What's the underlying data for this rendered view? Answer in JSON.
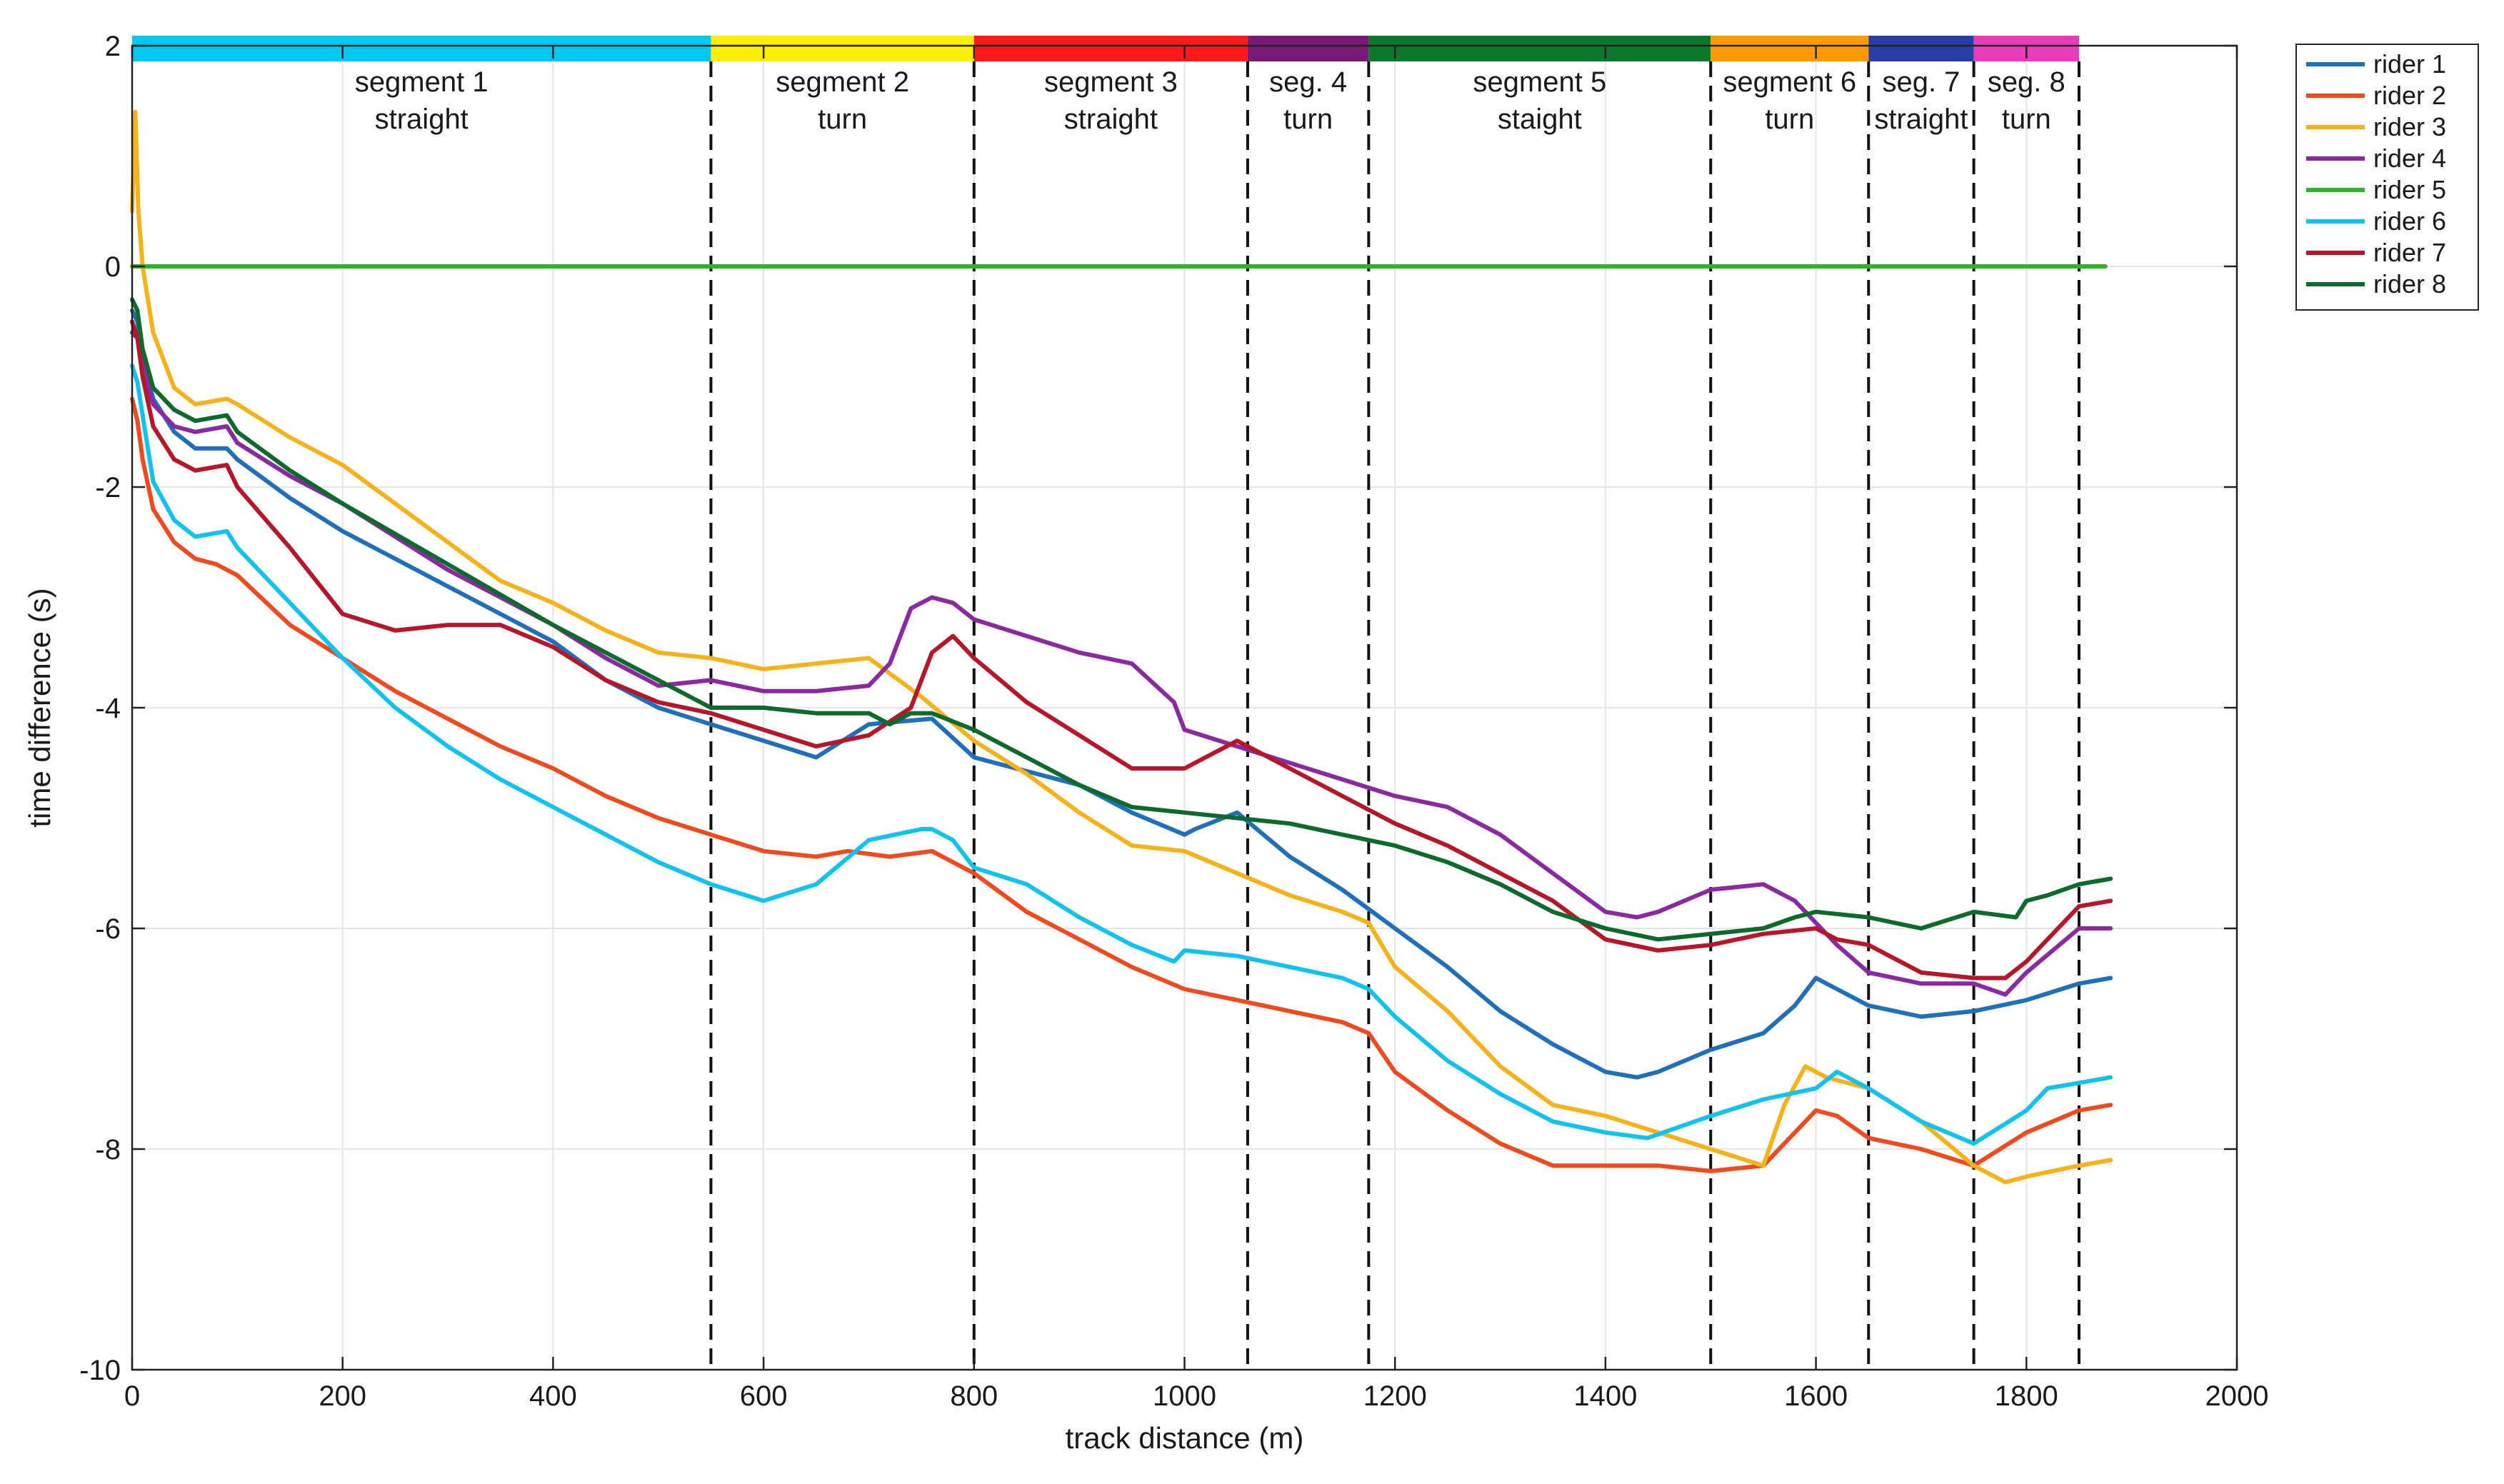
{
  "chart_data": {
    "type": "line",
    "xlabel": "track distance (m)",
    "ylabel": "time difference (s)",
    "xlim": [
      0,
      2000
    ],
    "ylim": [
      -10,
      2
    ],
    "x_ticks": [
      0,
      200,
      400,
      600,
      800,
      1000,
      1200,
      1400,
      1600,
      1800,
      2000
    ],
    "y_ticks": [
      2,
      0,
      -2,
      -4,
      -6,
      -8,
      -10
    ],
    "x_tick_labels": [
      "0",
      "200",
      "400",
      "600",
      "800",
      "1000",
      "1200",
      "1400",
      "1600",
      "1800",
      "2000"
    ],
    "y_tick_labels": [
      "2",
      "0",
      "-2",
      "-4",
      "-6",
      "-8",
      "-10"
    ],
    "grid": true,
    "legend_position": "outside-top-right",
    "segments": [
      {
        "label_line1": "segment 1",
        "label_line2": "straight",
        "start": 0,
        "end": 550,
        "color": "#00c8f0"
      },
      {
        "label_line1": "segment 2",
        "label_line2": "turn",
        "start": 550,
        "end": 800,
        "color": "#ffee00"
      },
      {
        "label_line1": "segment 3",
        "label_line2": "straight",
        "start": 800,
        "end": 1060,
        "color": "#ff1a1a"
      },
      {
        "label_line1": "seg. 4",
        "label_line2": "turn",
        "start": 1060,
        "end": 1175,
        "color": "#7a1a78"
      },
      {
        "label_line1": "segment  5",
        "label_line2": "staight",
        "start": 1175,
        "end": 1500,
        "color": "#0a7a2a"
      },
      {
        "label_line1": "segment 6",
        "label_line2": "turn",
        "start": 1500,
        "end": 1650,
        "color": "#ff9a00"
      },
      {
        "label_line1": "seg. 7",
        "label_line2": "straight",
        "start": 1650,
        "end": 1750,
        "color": "#2a3ea8"
      },
      {
        "label_line1": "seg. 8",
        "label_line2": "turn",
        "start": 1750,
        "end": 1850,
        "color": "#e83cba"
      }
    ],
    "series": [
      {
        "name": "rider 1",
        "color": "#1f6fba",
        "x": [
          0,
          5,
          10,
          20,
          40,
          60,
          90,
          100,
          150,
          200,
          300,
          400,
          450,
          500,
          550,
          600,
          650,
          700,
          760,
          800,
          900,
          950,
          1000,
          1010,
          1050,
          1100,
          1150,
          1200,
          1250,
          1300,
          1350,
          1400,
          1430,
          1450,
          1500,
          1550,
          1580,
          1600,
          1620,
          1650,
          1700,
          1750,
          1800,
          1850,
          1880
        ],
        "y": [
          -0.4,
          -0.5,
          -0.8,
          -1.2,
          -1.5,
          -1.65,
          -1.65,
          -1.75,
          -2.1,
          -2.4,
          -2.9,
          -3.4,
          -3.75,
          -4.0,
          -4.15,
          -4.3,
          -4.45,
          -4.15,
          -4.1,
          -4.45,
          -4.7,
          -4.95,
          -5.15,
          -5.1,
          -4.95,
          -5.35,
          -5.65,
          -6.0,
          -6.35,
          -6.75,
          -7.05,
          -7.3,
          -7.35,
          -7.3,
          -7.1,
          -6.95,
          -6.7,
          -6.45,
          -6.55,
          -6.7,
          -6.8,
          -6.75,
          -6.65,
          -6.5,
          -6.45
        ]
      },
      {
        "name": "rider 2",
        "color": "#f04a1f",
        "x": [
          0,
          5,
          10,
          20,
          40,
          60,
          80,
          100,
          150,
          200,
          250,
          300,
          350,
          400,
          450,
          500,
          550,
          600,
          650,
          680,
          720,
          760,
          800,
          850,
          900,
          950,
          1000,
          1050,
          1100,
          1150,
          1175,
          1200,
          1250,
          1300,
          1350,
          1400,
          1450,
          1500,
          1550,
          1580,
          1600,
          1620,
          1650,
          1700,
          1750,
          1800,
          1850,
          1880
        ],
        "y": [
          -1.2,
          -1.4,
          -1.75,
          -2.2,
          -2.5,
          -2.65,
          -2.7,
          -2.8,
          -3.25,
          -3.55,
          -3.85,
          -4.1,
          -4.35,
          -4.55,
          -4.8,
          -5.0,
          -5.15,
          -5.3,
          -5.35,
          -5.3,
          -5.35,
          -5.3,
          -5.5,
          -5.85,
          -6.1,
          -6.35,
          -6.55,
          -6.65,
          -6.75,
          -6.85,
          -6.95,
          -7.3,
          -7.65,
          -7.95,
          -8.15,
          -8.15,
          -8.15,
          -8.2,
          -8.15,
          -7.85,
          -7.65,
          -7.7,
          -7.9,
          -8.0,
          -8.15,
          -7.85,
          -7.65,
          -7.6
        ]
      },
      {
        "name": "rider 3",
        "color": "#f5b21a",
        "x": [
          0,
          3,
          6,
          10,
          20,
          40,
          60,
          90,
          100,
          150,
          200,
          250,
          300,
          350,
          400,
          450,
          500,
          550,
          600,
          650,
          700,
          750,
          800,
          850,
          900,
          950,
          1000,
          1050,
          1100,
          1150,
          1175,
          1200,
          1250,
          1300,
          1350,
          1400,
          1450,
          1500,
          1550,
          1570,
          1590,
          1610,
          1650,
          1700,
          1750,
          1780,
          1800,
          1850,
          1880
        ],
        "y": [
          0.5,
          1.4,
          0.5,
          0.0,
          -0.6,
          -1.1,
          -1.25,
          -1.2,
          -1.25,
          -1.55,
          -1.8,
          -2.15,
          -2.5,
          -2.85,
          -3.05,
          -3.3,
          -3.5,
          -3.55,
          -3.65,
          -3.6,
          -3.55,
          -3.9,
          -4.3,
          -4.6,
          -4.95,
          -5.25,
          -5.3,
          -5.5,
          -5.7,
          -5.85,
          -5.95,
          -6.35,
          -6.75,
          -7.25,
          -7.6,
          -7.7,
          -7.85,
          -8.0,
          -8.15,
          -7.6,
          -7.25,
          -7.35,
          -7.45,
          -7.75,
          -8.15,
          -8.3,
          -8.25,
          -8.15,
          -8.1
        ]
      },
      {
        "name": "rider 4",
        "color": "#8a2aa0",
        "x": [
          0,
          5,
          10,
          20,
          40,
          60,
          90,
          100,
          150,
          200,
          300,
          400,
          450,
          500,
          550,
          600,
          650,
          700,
          720,
          740,
          760,
          780,
          800,
          850,
          900,
          950,
          990,
          1000,
          1050,
          1100,
          1150,
          1200,
          1250,
          1300,
          1350,
          1400,
          1430,
          1450,
          1500,
          1550,
          1580,
          1600,
          1620,
          1650,
          1700,
          1750,
          1780,
          1800,
          1850,
          1880
        ],
        "y": [
          -0.6,
          -0.65,
          -0.9,
          -1.25,
          -1.45,
          -1.5,
          -1.45,
          -1.6,
          -1.9,
          -2.15,
          -2.75,
          -3.25,
          -3.55,
          -3.8,
          -3.75,
          -3.85,
          -3.85,
          -3.8,
          -3.6,
          -3.1,
          -3.0,
          -3.05,
          -3.2,
          -3.35,
          -3.5,
          -3.6,
          -3.95,
          -4.2,
          -4.35,
          -4.5,
          -4.65,
          -4.8,
          -4.9,
          -5.15,
          -5.5,
          -5.85,
          -5.9,
          -5.85,
          -5.65,
          -5.6,
          -5.75,
          -5.95,
          -6.15,
          -6.4,
          -6.5,
          -6.5,
          -6.6,
          -6.4,
          -6.0,
          -6.0
        ]
      },
      {
        "name": "rider 5",
        "color": "#2db52a",
        "x": [
          0,
          1875
        ],
        "y": [
          0.0,
          0.0
        ]
      },
      {
        "name": "rider 6",
        "color": "#12c2ee",
        "x": [
          0,
          5,
          10,
          20,
          40,
          60,
          90,
          100,
          150,
          200,
          250,
          300,
          350,
          400,
          450,
          500,
          550,
          600,
          650,
          700,
          750,
          760,
          780,
          800,
          850,
          900,
          950,
          990,
          1000,
          1050,
          1100,
          1150,
          1175,
          1200,
          1250,
          1300,
          1350,
          1400,
          1440,
          1500,
          1550,
          1600,
          1620,
          1650,
          1700,
          1750,
          1800,
          1820,
          1850,
          1880
        ],
        "y": [
          -0.9,
          -1.05,
          -1.35,
          -1.95,
          -2.3,
          -2.45,
          -2.4,
          -2.55,
          -3.05,
          -3.55,
          -4.0,
          -4.35,
          -4.65,
          -4.9,
          -5.15,
          -5.4,
          -5.6,
          -5.75,
          -5.6,
          -5.2,
          -5.1,
          -5.1,
          -5.2,
          -5.45,
          -5.6,
          -5.9,
          -6.15,
          -6.3,
          -6.2,
          -6.25,
          -6.35,
          -6.45,
          -6.55,
          -6.8,
          -7.2,
          -7.5,
          -7.75,
          -7.85,
          -7.9,
          -7.7,
          -7.55,
          -7.45,
          -7.3,
          -7.45,
          -7.75,
          -7.95,
          -7.65,
          -7.45,
          -7.4,
          -7.35
        ]
      },
      {
        "name": "rider 7",
        "color": "#b5162a",
        "x": [
          0,
          5,
          10,
          20,
          40,
          60,
          90,
          100,
          150,
          200,
          250,
          300,
          350,
          400,
          450,
          500,
          550,
          600,
          650,
          700,
          740,
          760,
          780,
          800,
          850,
          900,
          950,
          1000,
          1050,
          1100,
          1150,
          1200,
          1250,
          1300,
          1350,
          1400,
          1450,
          1500,
          1550,
          1600,
          1620,
          1650,
          1700,
          1750,
          1780,
          1800,
          1820,
          1850,
          1880
        ],
        "y": [
          -0.5,
          -0.65,
          -1.0,
          -1.45,
          -1.75,
          -1.85,
          -1.8,
          -2.0,
          -2.55,
          -3.15,
          -3.3,
          -3.25,
          -3.25,
          -3.45,
          -3.75,
          -3.95,
          -4.05,
          -4.2,
          -4.35,
          -4.25,
          -4.0,
          -3.5,
          -3.35,
          -3.55,
          -3.95,
          -4.25,
          -4.55,
          -4.55,
          -4.3,
          -4.55,
          -4.8,
          -5.05,
          -5.25,
          -5.5,
          -5.75,
          -6.1,
          -6.2,
          -6.15,
          -6.05,
          -6.0,
          -6.1,
          -6.15,
          -6.4,
          -6.45,
          -6.45,
          -6.3,
          -6.1,
          -5.8,
          -5.75
        ]
      },
      {
        "name": "rider 8",
        "color": "#0d6a2c",
        "x": [
          0,
          5,
          10,
          20,
          40,
          60,
          90,
          100,
          150,
          200,
          300,
          400,
          500,
          550,
          600,
          650,
          700,
          720,
          740,
          760,
          800,
          850,
          900,
          950,
          1000,
          1050,
          1100,
          1150,
          1200,
          1250,
          1300,
          1350,
          1400,
          1450,
          1500,
          1550,
          1580,
          1600,
          1650,
          1700,
          1750,
          1790,
          1800,
          1820,
          1850,
          1880
        ],
        "y": [
          -0.3,
          -0.4,
          -0.75,
          -1.1,
          -1.3,
          -1.4,
          -1.35,
          -1.5,
          -1.85,
          -2.15,
          -2.7,
          -3.25,
          -3.75,
          -4.0,
          -4.0,
          -4.05,
          -4.05,
          -4.15,
          -4.05,
          -4.05,
          -4.2,
          -4.45,
          -4.7,
          -4.9,
          -4.95,
          -5.0,
          -5.05,
          -5.15,
          -5.25,
          -5.4,
          -5.6,
          -5.85,
          -6.0,
          -6.1,
          -6.05,
          -6.0,
          -5.9,
          -5.85,
          -5.9,
          -6.0,
          -5.85,
          -5.9,
          -5.75,
          -5.7,
          -5.6,
          -5.55
        ]
      }
    ]
  }
}
